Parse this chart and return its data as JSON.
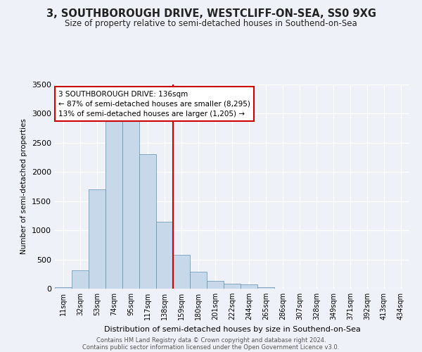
{
  "title": "3, SOUTHBOROUGH DRIVE, WESTCLIFF-ON-SEA, SS0 9XG",
  "subtitle": "Size of property relative to semi-detached houses in Southend-on-Sea",
  "xlabel": "Distribution of semi-detached houses by size in Southend-on-Sea",
  "ylabel": "Number of semi-detached properties",
  "footnote1": "Contains HM Land Registry data © Crown copyright and database right 2024.",
  "footnote2": "Contains public sector information licensed under the Open Government Licence v3.0.",
  "annotation_title": "3 SOUTHBOROUGH DRIVE: 136sqm",
  "annotation_line1": "← 87% of semi-detached houses are smaller (8,295)",
  "annotation_line2": "13% of semi-detached houses are larger (1,205) →",
  "bar_color": "#c8d8eb",
  "bar_edge_color": "#6090b0",
  "highlight_line_color": "#cc0000",
  "annotation_box_color": "#ffffff",
  "annotation_box_edge": "#cc0000",
  "background_color": "#eef2f8",
  "categories": [
    "11sqm",
    "32sqm",
    "53sqm",
    "74sqm",
    "95sqm",
    "117sqm",
    "138sqm",
    "159sqm",
    "180sqm",
    "201sqm",
    "222sqm",
    "244sqm",
    "265sqm",
    "286sqm",
    "307sqm",
    "328sqm",
    "349sqm",
    "371sqm",
    "392sqm",
    "413sqm",
    "434sqm"
  ],
  "values": [
    25,
    310,
    1700,
    2950,
    3000,
    2300,
    1150,
    580,
    290,
    130,
    80,
    70,
    30,
    0,
    0,
    0,
    0,
    0,
    0,
    0,
    0
  ],
  "ylim": [
    0,
    3500
  ],
  "yticks": [
    0,
    500,
    1000,
    1500,
    2000,
    2500,
    3000,
    3500
  ],
  "property_line_index": 6.5
}
